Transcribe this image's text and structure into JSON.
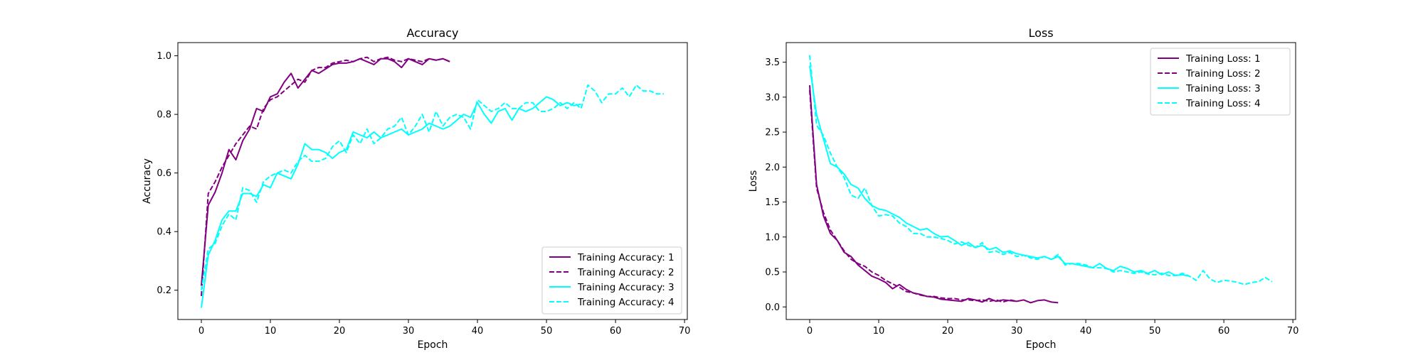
{
  "colors": {
    "training_1": "#800080",
    "training_2": "#800080",
    "training_3": "#00FFFF",
    "training_4": "#00FFFF"
  },
  "chart_data": [
    {
      "type": "line",
      "title": "Accuracy",
      "xlabel": "Epoch",
      "ylabel": "Accuracy",
      "xlim": [
        -3.4,
        70.4
      ],
      "ylim": [
        0.1,
        1.045
      ],
      "xticks": [
        0,
        10,
        20,
        30,
        40,
        50,
        60,
        70
      ],
      "yticks": [
        0.2,
        0.4,
        0.6,
        0.8,
        1.0
      ],
      "xtick_labels": [
        "0",
        "10",
        "20",
        "30",
        "40",
        "50",
        "60",
        "70"
      ],
      "ytick_labels": [
        "0.2",
        "0.4",
        "0.6",
        "0.8",
        "1.0"
      ],
      "grid": false,
      "legend": "lower-right",
      "series": [
        {
          "name": "Training Accuracy: 1",
          "color": "#800080",
          "style": "solid",
          "x": [
            0,
            1,
            2,
            3,
            4,
            5,
            6,
            7,
            8,
            9,
            10,
            11,
            12,
            13,
            14,
            15,
            16,
            17,
            18,
            19,
            20,
            21,
            22,
            23,
            24,
            25,
            26,
            27,
            28,
            29,
            30,
            31,
            32,
            33,
            34,
            35,
            36
          ],
          "y": [
            0.215,
            0.49,
            0.535,
            0.6,
            0.68,
            0.645,
            0.71,
            0.75,
            0.82,
            0.81,
            0.86,
            0.87,
            0.91,
            0.94,
            0.89,
            0.92,
            0.95,
            0.94,
            0.955,
            0.97,
            0.975,
            0.975,
            0.98,
            0.99,
            0.98,
            0.97,
            0.99,
            0.99,
            0.98,
            0.96,
            0.99,
            0.98,
            0.97,
            0.99,
            0.985,
            0.99,
            0.98
          ]
        },
        {
          "name": "Training Accuracy: 2",
          "color": "#800080",
          "style": "dashed",
          "x": [
            0,
            1,
            2,
            3,
            4,
            5,
            6,
            7,
            8,
            9,
            10,
            11,
            12,
            13,
            14,
            15,
            16,
            17,
            18,
            19,
            20,
            21,
            22,
            23,
            24,
            25,
            26,
            27,
            28,
            29,
            30,
            31,
            32,
            33,
            34,
            35,
            36
          ],
          "y": [
            0.18,
            0.53,
            0.57,
            0.62,
            0.66,
            0.7,
            0.73,
            0.76,
            0.75,
            0.82,
            0.85,
            0.86,
            0.88,
            0.9,
            0.92,
            0.91,
            0.95,
            0.96,
            0.96,
            0.975,
            0.98,
            0.985,
            0.98,
            0.99,
            0.995,
            0.98,
            0.99,
            0.995,
            0.985,
            0.98,
            0.99,
            0.985,
            0.98,
            0.99,
            0.985,
            0.99,
            0.98
          ]
        },
        {
          "name": "Training Accuracy: 3",
          "color": "#00FFFF",
          "style": "solid",
          "x": [
            0,
            1,
            2,
            3,
            4,
            5,
            6,
            7,
            8,
            9,
            10,
            11,
            12,
            13,
            14,
            15,
            16,
            17,
            18,
            19,
            20,
            21,
            22,
            23,
            24,
            25,
            26,
            27,
            28,
            29,
            30,
            31,
            32,
            33,
            34,
            35,
            36,
            37,
            38,
            39,
            40,
            41,
            42,
            43,
            44,
            45,
            46,
            47,
            48,
            49,
            50,
            51,
            52,
            53,
            54,
            55
          ],
          "y": [
            0.14,
            0.32,
            0.37,
            0.44,
            0.47,
            0.47,
            0.53,
            0.53,
            0.52,
            0.56,
            0.55,
            0.6,
            0.59,
            0.58,
            0.63,
            0.7,
            0.68,
            0.68,
            0.67,
            0.65,
            0.67,
            0.68,
            0.74,
            0.73,
            0.72,
            0.74,
            0.72,
            0.73,
            0.74,
            0.75,
            0.73,
            0.74,
            0.75,
            0.77,
            0.76,
            0.75,
            0.76,
            0.78,
            0.8,
            0.79,
            0.84,
            0.8,
            0.77,
            0.81,
            0.82,
            0.78,
            0.82,
            0.81,
            0.82,
            0.84,
            0.86,
            0.85,
            0.83,
            0.84,
            0.83,
            0.835
          ]
        },
        {
          "name": "Training Accuracy: 4",
          "color": "#00FFFF",
          "style": "dashed",
          "x": [
            0,
            1,
            2,
            3,
            4,
            5,
            6,
            7,
            8,
            9,
            10,
            11,
            12,
            13,
            14,
            15,
            16,
            17,
            18,
            19,
            20,
            21,
            22,
            23,
            24,
            25,
            26,
            27,
            28,
            29,
            30,
            31,
            32,
            33,
            34,
            35,
            36,
            37,
            38,
            39,
            40,
            41,
            42,
            43,
            44,
            45,
            46,
            47,
            48,
            49,
            50,
            51,
            52,
            53,
            54,
            55,
            56,
            57,
            58,
            59,
            60,
            61,
            62,
            63,
            64,
            65,
            66,
            67
          ],
          "y": [
            0.2,
            0.34,
            0.36,
            0.42,
            0.46,
            0.44,
            0.55,
            0.54,
            0.5,
            0.57,
            0.59,
            0.6,
            0.61,
            0.6,
            0.64,
            0.66,
            0.64,
            0.64,
            0.65,
            0.69,
            0.71,
            0.67,
            0.73,
            0.7,
            0.75,
            0.7,
            0.72,
            0.75,
            0.76,
            0.79,
            0.73,
            0.76,
            0.8,
            0.74,
            0.81,
            0.76,
            0.79,
            0.8,
            0.79,
            0.75,
            0.85,
            0.83,
            0.81,
            0.82,
            0.84,
            0.82,
            0.82,
            0.84,
            0.84,
            0.81,
            0.81,
            0.82,
            0.84,
            0.82,
            0.84,
            0.82,
            0.9,
            0.88,
            0.84,
            0.87,
            0.87,
            0.89,
            0.86,
            0.9,
            0.88,
            0.88,
            0.87,
            0.87
          ]
        }
      ]
    },
    {
      "type": "line",
      "title": "Loss",
      "xlabel": "Epoch",
      "ylabel": "Loss",
      "xlim": [
        -3.4,
        70.4
      ],
      "ylim": [
        -0.18,
        3.78
      ],
      "xticks": [
        0,
        10,
        20,
        30,
        40,
        50,
        60,
        70
      ],
      "yticks": [
        0.0,
        0.5,
        1.0,
        1.5,
        2.0,
        2.5,
        3.0,
        3.5
      ],
      "xtick_labels": [
        "0",
        "10",
        "20",
        "30",
        "40",
        "50",
        "60",
        "70"
      ],
      "ytick_labels": [
        "0.0",
        "0.5",
        "1.0",
        "1.5",
        "2.0",
        "2.5",
        "3.0",
        "3.5"
      ],
      "grid": false,
      "legend": "upper-right",
      "series": [
        {
          "name": "Training Loss: 1",
          "color": "#800080",
          "style": "solid",
          "x": [
            0,
            1,
            2,
            3,
            4,
            5,
            6,
            7,
            8,
            9,
            10,
            11,
            12,
            13,
            14,
            15,
            16,
            17,
            18,
            19,
            20,
            21,
            22,
            23,
            24,
            25,
            26,
            27,
            28,
            29,
            30,
            31,
            32,
            33,
            34,
            35,
            36
          ],
          "y": [
            3.17,
            1.75,
            1.3,
            1.05,
            0.95,
            0.78,
            0.72,
            0.6,
            0.52,
            0.44,
            0.4,
            0.35,
            0.26,
            0.32,
            0.25,
            0.2,
            0.18,
            0.15,
            0.14,
            0.11,
            0.1,
            0.09,
            0.08,
            0.12,
            0.1,
            0.07,
            0.12,
            0.08,
            0.1,
            0.09,
            0.08,
            0.1,
            0.06,
            0.09,
            0.1,
            0.07,
            0.06
          ]
        },
        {
          "name": "Training Loss: 2",
          "color": "#800080",
          "style": "dashed",
          "x": [
            0,
            1,
            2,
            3,
            4,
            5,
            6,
            7,
            8,
            9,
            10,
            11,
            12,
            13,
            14,
            15,
            16,
            17,
            18,
            19,
            20,
            21,
            22,
            23,
            24,
            25,
            26,
            27,
            28,
            29,
            30
          ],
          "y": [
            3.1,
            1.7,
            1.35,
            1.1,
            0.95,
            0.8,
            0.68,
            0.62,
            0.58,
            0.5,
            0.45,
            0.38,
            0.33,
            0.28,
            0.22,
            0.2,
            0.17,
            0.15,
            0.15,
            0.13,
            0.12,
            0.12,
            0.1,
            0.1,
            0.09,
            0.1,
            0.08,
            0.1,
            0.07,
            0.1,
            0.08
          ]
        },
        {
          "name": "Training Loss: 3",
          "color": "#00FFFF",
          "style": "solid",
          "x": [
            0,
            1,
            2,
            3,
            4,
            5,
            6,
            7,
            8,
            9,
            10,
            11,
            12,
            13,
            14,
            15,
            16,
            17,
            18,
            19,
            20,
            21,
            22,
            23,
            24,
            25,
            26,
            27,
            28,
            29,
            30,
            31,
            32,
            33,
            34,
            35,
            36,
            37,
            38,
            39,
            40,
            41,
            42,
            43,
            44,
            45,
            46,
            47,
            48,
            49,
            50,
            51,
            52,
            53,
            54,
            55
          ],
          "y": [
            3.45,
            2.75,
            2.4,
            2.05,
            2.0,
            1.9,
            1.75,
            1.7,
            1.55,
            1.45,
            1.4,
            1.38,
            1.33,
            1.28,
            1.2,
            1.15,
            1.1,
            1.12,
            1.05,
            1.0,
            1.01,
            0.95,
            0.88,
            0.92,
            0.85,
            0.88,
            0.82,
            0.85,
            0.78,
            0.8,
            0.76,
            0.74,
            0.72,
            0.7,
            0.72,
            0.68,
            0.72,
            0.62,
            0.62,
            0.6,
            0.58,
            0.56,
            0.62,
            0.55,
            0.52,
            0.58,
            0.55,
            0.5,
            0.52,
            0.48,
            0.52,
            0.46,
            0.5,
            0.45,
            0.46,
            0.44
          ]
        },
        {
          "name": "Training Loss: 4",
          "color": "#00FFFF",
          "style": "dashed",
          "x": [
            0,
            1,
            2,
            3,
            4,
            5,
            6,
            7,
            8,
            9,
            10,
            11,
            12,
            13,
            14,
            15,
            16,
            17,
            18,
            19,
            20,
            21,
            22,
            23,
            24,
            25,
            26,
            27,
            28,
            29,
            30,
            31,
            32,
            33,
            34,
            35,
            36,
            37,
            38,
            39,
            40,
            41,
            42,
            43,
            44,
            45,
            46,
            47,
            48,
            49,
            50,
            51,
            52,
            53,
            54,
            55,
            56,
            57,
            58,
            59,
            60,
            61,
            62,
            63,
            64,
            65,
            66,
            67
          ],
          "y": [
            3.6,
            2.6,
            2.45,
            2.2,
            2.0,
            1.85,
            1.6,
            1.55,
            1.7,
            1.45,
            1.3,
            1.32,
            1.3,
            1.2,
            1.15,
            1.05,
            1.05,
            1.0,
            1.0,
            0.98,
            0.95,
            0.9,
            0.93,
            0.88,
            0.85,
            0.92,
            0.78,
            0.8,
            0.75,
            0.78,
            0.72,
            0.74,
            0.7,
            0.68,
            0.72,
            0.68,
            0.75,
            0.6,
            0.62,
            0.62,
            0.6,
            0.56,
            0.56,
            0.55,
            0.5,
            0.52,
            0.5,
            0.48,
            0.5,
            0.47,
            0.46,
            0.48,
            0.45,
            0.45,
            0.48,
            0.44,
            0.38,
            0.52,
            0.4,
            0.35,
            0.38,
            0.37,
            0.35,
            0.32,
            0.35,
            0.36,
            0.42,
            0.36
          ]
        }
      ]
    }
  ]
}
